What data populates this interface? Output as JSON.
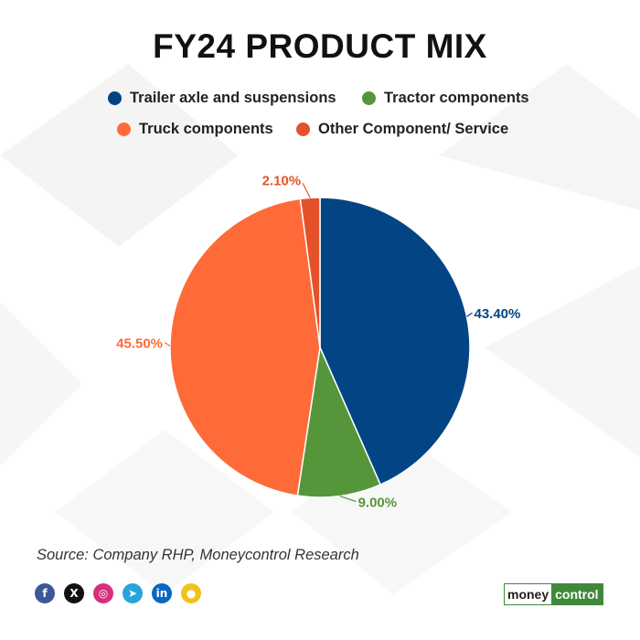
{
  "title": "FY24 PRODUCT MIX",
  "source": "Source: Company RHP, Moneycontrol Research",
  "brand": {
    "part1": "money",
    "part2": "control"
  },
  "social": [
    {
      "icon": "facebook-icon",
      "glyph": "f",
      "color": "#3b5998"
    },
    {
      "icon": "x-icon",
      "glyph": "X",
      "color": "#111111"
    },
    {
      "icon": "instagram-icon",
      "glyph": "◎",
      "color": "#d6307a"
    },
    {
      "icon": "telegram-icon",
      "glyph": "➤",
      "color": "#2aa3d9"
    },
    {
      "icon": "linkedin-icon",
      "glyph": "in",
      "color": "#0a66c2"
    },
    {
      "icon": "koo-icon",
      "glyph": "●",
      "color": "#f2c21b"
    }
  ],
  "chart_data": {
    "type": "pie",
    "title": "FY24 PRODUCT MIX",
    "legend_position": "top",
    "slices": [
      {
        "label": "Trailer axle and suspensions",
        "value": 43.4,
        "display": "43.40%",
        "color": "#034584"
      },
      {
        "label": "Tractor components",
        "value": 9.0,
        "display": "9.00%",
        "color": "#56963b"
      },
      {
        "label": "Truck components",
        "value": 45.5,
        "display": "45.50%",
        "color": "#ff6b38"
      },
      {
        "label": "Other Component/ Service",
        "value": 2.1,
        "display": "2.10%",
        "color": "#e4522a"
      }
    ]
  }
}
